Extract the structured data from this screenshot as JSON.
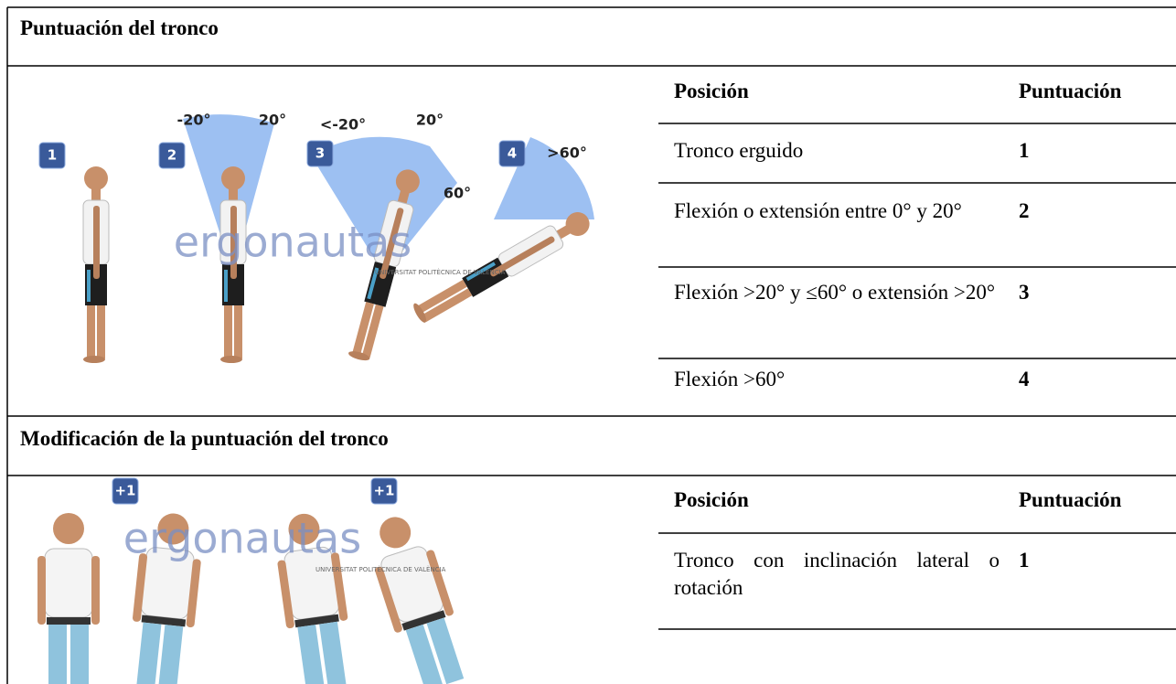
{
  "sections": [
    {
      "title": "Puntuación del tronco",
      "figure": {
        "badges": [
          "1",
          "2",
          "3",
          "4"
        ],
        "angles": [
          "-20°",
          "20°",
          "<-20°",
          "20°",
          "60°",
          ">60°"
        ],
        "watermark": "ergonautas",
        "institution": "UNIVERSITAT POLITÈCNICA DE VALÈNCIA"
      },
      "table": {
        "header": [
          "Posición",
          "Puntuación"
        ],
        "rows": [
          [
            "Tronco erguido",
            "1"
          ],
          [
            "Flexión o extensión entre 0° y 20°",
            "2"
          ],
          [
            "Flexión >20° y ≤60° o extensión >20°",
            "3"
          ],
          [
            "Flexión >60°",
            "4"
          ]
        ]
      }
    },
    {
      "title": "Modificación de la puntuación del tronco",
      "figure": {
        "badges": [
          "+1",
          "+1"
        ],
        "watermark": "ergonautas",
        "institution": "UNIVERSITAT POLITÈCNICA DE VALÈNCIA"
      },
      "table": {
        "header": [
          "Posición",
          "Puntuación"
        ],
        "rows": [
          [
            "Tronco con inclinación lateral o rotación",
            "1"
          ]
        ]
      }
    }
  ]
}
